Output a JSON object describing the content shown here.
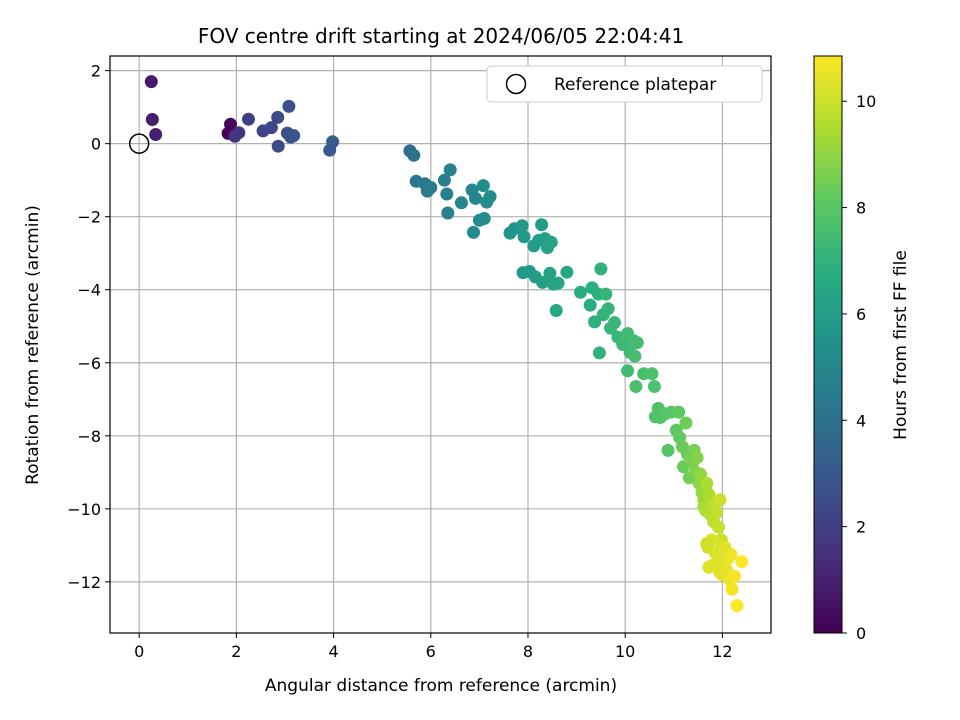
{
  "chart_data": {
    "type": "scatter",
    "title": "FOV centre drift starting at 2024/06/05 22:04:41",
    "xlabel": "Angular distance from reference (arcmin)",
    "ylabel": "Rotation from reference (arcmin)",
    "colorbar_label": "Hours from first FF file",
    "xlim": [
      -0.6,
      13.0
    ],
    "ylim": [
      -13.4,
      2.4
    ],
    "clim": [
      0,
      10.85
    ],
    "x_ticks": [
      0,
      2,
      4,
      6,
      8,
      10,
      12
    ],
    "y_ticks": [
      2,
      0,
      -2,
      -4,
      -6,
      -8,
      -10,
      -12
    ],
    "colorbar_ticks": [
      0,
      2,
      4,
      6,
      8,
      10
    ],
    "grid": true,
    "colormap": "viridis",
    "legend": {
      "placement": "top-right",
      "entries": [
        "Reference platepar"
      ]
    },
    "reference_point": {
      "x": 0,
      "y": 0
    },
    "points": [
      [
        0.25,
        1.7,
        0.8
      ],
      [
        0.27,
        0.66,
        0.9
      ],
      [
        0.34,
        0.25,
        1.0
      ],
      [
        1.83,
        0.28,
        0.1
      ],
      [
        1.88,
        0.53,
        0.2
      ],
      [
        1.97,
        0.2,
        1.6
      ],
      [
        2.05,
        0.3,
        1.7
      ],
      [
        2.25,
        0.67,
        2.0
      ],
      [
        2.55,
        0.35,
        2.2
      ],
      [
        2.72,
        0.44,
        2.3
      ],
      [
        2.85,
        0.72,
        2.4
      ],
      [
        2.86,
        -0.07,
        2.5
      ],
      [
        3.05,
        0.29,
        2.6
      ],
      [
        3.08,
        1.02,
        2.6
      ],
      [
        3.12,
        0.18,
        2.7
      ],
      [
        3.18,
        0.22,
        2.8
      ],
      [
        3.92,
        -0.18,
        3.0
      ],
      [
        3.98,
        0.05,
        3.1
      ],
      [
        5.57,
        -0.2,
        4.0
      ],
      [
        5.65,
        -0.32,
        4.1
      ],
      [
        5.7,
        -1.03,
        4.2
      ],
      [
        5.88,
        -1.1,
        4.3
      ],
      [
        5.93,
        -1.3,
        4.4
      ],
      [
        6.0,
        -1.2,
        4.5
      ],
      [
        6.28,
        -1.0,
        4.6
      ],
      [
        6.33,
        -1.38,
        4.7
      ],
      [
        6.35,
        -1.9,
        4.7
      ],
      [
        6.4,
        -0.72,
        4.8
      ],
      [
        6.63,
        -1.62,
        4.9
      ],
      [
        6.85,
        -1.27,
        5.0
      ],
      [
        6.92,
        -1.5,
        5.0
      ],
      [
        6.88,
        -2.43,
        5.1
      ],
      [
        7.0,
        -2.1,
        5.1
      ],
      [
        7.08,
        -1.15,
        5.2
      ],
      [
        7.1,
        -2.05,
        5.2
      ],
      [
        7.15,
        -1.6,
        5.3
      ],
      [
        7.22,
        -1.45,
        5.3
      ],
      [
        7.63,
        -2.45,
        5.6
      ],
      [
        7.72,
        -2.33,
        5.6
      ],
      [
        7.88,
        -2.25,
        5.7
      ],
      [
        7.92,
        -2.55,
        5.7
      ],
      [
        7.9,
        -3.53,
        5.8
      ],
      [
        8.03,
        -3.5,
        5.8
      ],
      [
        8.12,
        -2.8,
        5.9
      ],
      [
        8.15,
        -3.65,
        5.9
      ],
      [
        8.22,
        -2.65,
        6.0
      ],
      [
        8.28,
        -2.22,
        6.0
      ],
      [
        8.3,
        -3.8,
        6.1
      ],
      [
        8.35,
        -2.6,
        6.1
      ],
      [
        8.4,
        -2.85,
        6.2
      ],
      [
        8.45,
        -3.55,
        6.2
      ],
      [
        8.48,
        -2.7,
        6.3
      ],
      [
        8.52,
        -3.85,
        6.3
      ],
      [
        8.58,
        -4.57,
        6.4
      ],
      [
        8.62,
        -3.82,
        6.4
      ],
      [
        8.8,
        -3.52,
        6.5
      ],
      [
        9.08,
        -4.07,
        6.7
      ],
      [
        9.28,
        -4.42,
        6.8
      ],
      [
        9.32,
        -3.95,
        6.8
      ],
      [
        9.37,
        -4.88,
        6.9
      ],
      [
        9.45,
        -4.12,
        6.9
      ],
      [
        9.47,
        -5.73,
        7.0
      ],
      [
        9.5,
        -3.43,
        7.0
      ],
      [
        9.55,
        -4.68,
        7.0
      ],
      [
        9.6,
        -4.12,
        7.1
      ],
      [
        9.65,
        -4.52,
        7.1
      ],
      [
        9.7,
        -5.05,
        7.2
      ],
      [
        9.78,
        -4.9,
        7.2
      ],
      [
        9.85,
        -5.3,
        7.2
      ],
      [
        9.95,
        -5.5,
        7.3
      ],
      [
        10.0,
        -5.4,
        7.3
      ],
      [
        10.05,
        -5.2,
        7.4
      ],
      [
        10.05,
        -6.22,
        7.4
      ],
      [
        10.1,
        -5.72,
        7.4
      ],
      [
        10.18,
        -5.4,
        7.5
      ],
      [
        10.2,
        -5.82,
        7.5
      ],
      [
        10.25,
        -5.45,
        7.5
      ],
      [
        10.22,
        -6.65,
        7.6
      ],
      [
        10.38,
        -6.3,
        7.6
      ],
      [
        10.55,
        -6.3,
        7.7
      ],
      [
        10.6,
        -6.65,
        7.7
      ],
      [
        10.62,
        -7.48,
        7.8
      ],
      [
        10.68,
        -7.25,
        7.8
      ],
      [
        10.72,
        -7.5,
        7.8
      ],
      [
        10.82,
        -7.4,
        7.9
      ],
      [
        10.88,
        -8.4,
        7.9
      ],
      [
        10.95,
        -7.35,
        8.0
      ],
      [
        11.05,
        -7.85,
        8.1
      ],
      [
        11.1,
        -7.35,
        8.1
      ],
      [
        11.12,
        -8.05,
        8.2
      ],
      [
        11.18,
        -8.3,
        8.3
      ],
      [
        11.2,
        -8.85,
        8.3
      ],
      [
        11.25,
        -7.65,
        8.4
      ],
      [
        11.28,
        -8.5,
        8.4
      ],
      [
        11.32,
        -9.15,
        8.5
      ],
      [
        11.38,
        -8.75,
        8.6
      ],
      [
        11.42,
        -8.4,
        8.6
      ],
      [
        11.45,
        -9.0,
        8.7
      ],
      [
        11.48,
        -8.6,
        8.8
      ],
      [
        11.52,
        -9.3,
        8.9
      ],
      [
        11.55,
        -9.05,
        9.0
      ],
      [
        11.58,
        -9.55,
        9.1
      ],
      [
        11.62,
        -9.75,
        9.2
      ],
      [
        11.62,
        -9.95,
        9.3
      ],
      [
        11.66,
        -10.05,
        9.4
      ],
      [
        11.68,
        -9.3,
        9.5
      ],
      [
        11.72,
        -9.6,
        9.5
      ],
      [
        11.75,
        -10.15,
        9.6
      ],
      [
        11.78,
        -9.9,
        9.7
      ],
      [
        11.82,
        -10.35,
        9.7
      ],
      [
        11.85,
        -9.85,
        9.8
      ],
      [
        11.88,
        -10.1,
        9.9
      ],
      [
        11.92,
        -10.5,
        9.9
      ],
      [
        11.95,
        -9.75,
        10.0
      ],
      [
        11.98,
        -10.85,
        10.0
      ],
      [
        12.0,
        -11.0,
        10.1
      ],
      [
        11.7,
        -11.05,
        10.1
      ],
      [
        11.78,
        -10.85,
        10.2
      ],
      [
        11.85,
        -11.2,
        10.2
      ],
      [
        11.8,
        -11.55,
        10.3
      ],
      [
        11.92,
        -11.4,
        10.3
      ],
      [
        12.0,
        -11.8,
        10.4
      ],
      [
        12.05,
        -11.05,
        10.4
      ],
      [
        12.08,
        -11.65,
        10.5
      ],
      [
        12.12,
        -11.35,
        10.5
      ],
      [
        12.15,
        -11.95,
        10.6
      ],
      [
        12.18,
        -11.25,
        10.6
      ],
      [
        12.2,
        -12.2,
        10.7
      ],
      [
        12.25,
        -11.85,
        10.7
      ],
      [
        12.3,
        -12.65,
        10.8
      ],
      [
        12.4,
        -11.45,
        10.8
      ],
      [
        11.95,
        -11.75,
        10.4
      ],
      [
        11.72,
        -11.6,
        10.3
      ],
      [
        11.68,
        -10.95,
        10.1
      ]
    ]
  }
}
